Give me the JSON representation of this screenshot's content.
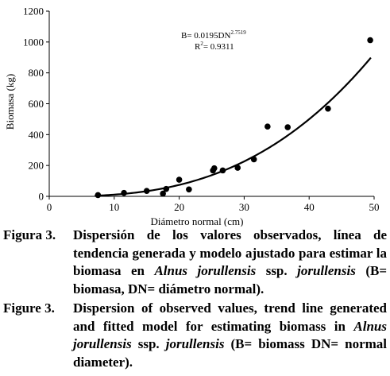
{
  "chart_data": {
    "type": "scatter",
    "xlabel": "Diámetro normal (cm)",
    "ylabel": "Biomasa (kg)",
    "xlim": [
      0,
      50
    ],
    "ylim": [
      0,
      1200
    ],
    "xticks": [
      0,
      10,
      20,
      30,
      40,
      50
    ],
    "yticks": [
      0,
      200,
      400,
      600,
      800,
      1000,
      1200
    ],
    "grid": false,
    "points": [
      {
        "x": 7.5,
        "y": 8
      },
      {
        "x": 11.5,
        "y": 22
      },
      {
        "x": 15,
        "y": 35
      },
      {
        "x": 17.5,
        "y": 18
      },
      {
        "x": 18,
        "y": 48
      },
      {
        "x": 20,
        "y": 108
      },
      {
        "x": 21.5,
        "y": 45
      },
      {
        "x": 25.2,
        "y": 168
      },
      {
        "x": 25.4,
        "y": 182
      },
      {
        "x": 26.7,
        "y": 168
      },
      {
        "x": 29,
        "y": 185
      },
      {
        "x": 31.5,
        "y": 240
      },
      {
        "x": 33.6,
        "y": 452
      },
      {
        "x": 36.7,
        "y": 448
      },
      {
        "x": 42.9,
        "y": 568
      },
      {
        "x": 49.4,
        "y": 1012
      }
    ],
    "trend_line": {
      "model": "power",
      "a": 0.0195,
      "b": 2.7519,
      "x_range": [
        7,
        49.5
      ]
    },
    "annotations": {
      "equation_prefix": "B= 0.0195DN",
      "equation_exponent": "2.7519",
      "r2_prefix": "R",
      "r2_sup": "2",
      "r2_value": "= 0.9311"
    }
  },
  "caption_es": {
    "head": "Figura 3.",
    "text1": "Dispersión de los valores observados, línea de tendencia generada y modelo ajustado para estimar la biomasa en ",
    "species_italic": "Alnus jorullensis",
    "text2": " ssp. ",
    "subsp_italic": "jorullensis",
    "text3": " (B= biomasa, DN= diámetro normal)."
  },
  "caption_en": {
    "head": "Figure 3.",
    "text1": "Dispersion of observed values, trend line generated and fitted model for estimating biomass in ",
    "species_italic": "Alnus jorullensis",
    "text2": " ssp. ",
    "subsp_italic": "jorullensis",
    "text3": " (B= biomass DN= normal diameter)."
  }
}
